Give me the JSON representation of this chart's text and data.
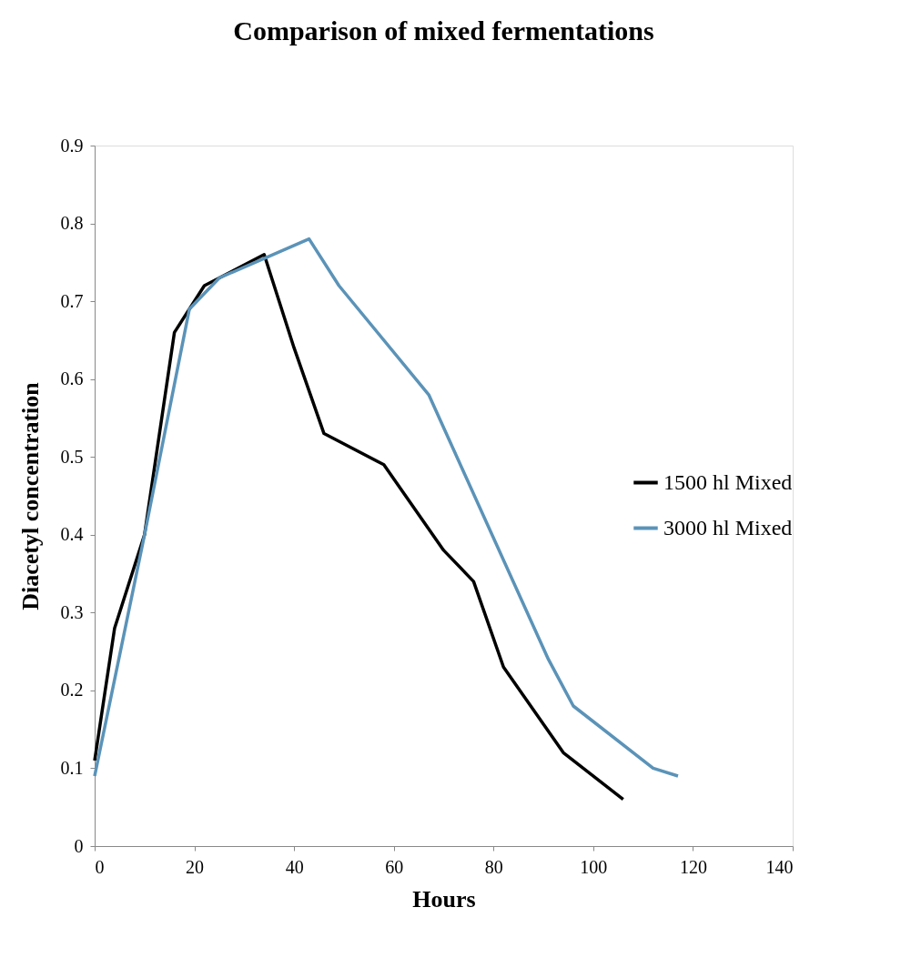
{
  "chart_data": {
    "type": "line",
    "title": "Comparison of mixed fermentations",
    "xlabel": "Hours",
    "ylabel": "Diacetyl concentration",
    "series": [
      {
        "name": "1500 hl Mixed",
        "color": "#000000",
        "x": [
          0,
          4,
          10,
          16,
          22,
          34,
          40,
          46,
          58,
          70,
          76,
          82,
          94,
          106
        ],
        "values": [
          0.11,
          0.28,
          0.4,
          0.66,
          0.72,
          0.76,
          0.64,
          0.53,
          0.49,
          0.38,
          0.34,
          0.23,
          0.12,
          0.06
        ]
      },
      {
        "name": "3000 hl Mixed",
        "color": "#5b93b8",
        "x": [
          0,
          10,
          19,
          25,
          43,
          49,
          67,
          91,
          96,
          112,
          117
        ],
        "values": [
          0.09,
          0.4,
          0.69,
          0.73,
          0.78,
          0.72,
          0.58,
          0.24,
          0.18,
          0.1,
          0.09
        ]
      }
    ],
    "xlim": [
      0,
      140
    ],
    "xticks": [
      0,
      20,
      40,
      60,
      80,
      100,
      120,
      140
    ],
    "ylim": [
      0,
      0.9
    ],
    "yticks": [
      0,
      0.1,
      0.2,
      0.3,
      0.4,
      0.5,
      0.6,
      0.7,
      0.8,
      0.9
    ],
    "grid": false,
    "legend": "right",
    "marker": "none",
    "line_style": "solid"
  }
}
